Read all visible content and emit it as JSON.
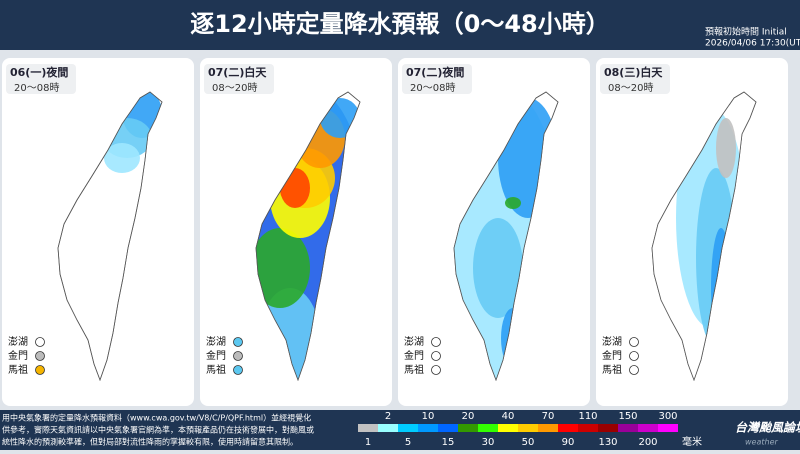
{
  "header": {
    "title": "逐12小時定量降水預報（0～48小時）",
    "init_label": "預報初始時間 Initial",
    "init_time": "2026/04/06   17:30(UT"
  },
  "panels": [
    {
      "day": "06(一)夜間",
      "hours": "20～08時",
      "islands": [
        "澎湖",
        "金門",
        "馬祖"
      ]
    },
    {
      "day": "07(二)白天",
      "hours": "08～20時",
      "islands": [
        "澎湖",
        "金門",
        "馬祖"
      ]
    },
    {
      "day": "07(二)夜間",
      "hours": "20～08時",
      "islands": [
        "澎湖",
        "金門",
        "馬祖"
      ]
    },
    {
      "day": "08(三)白天",
      "hours": "08～20時",
      "islands": [
        "澎湖",
        "金門",
        "馬祖"
      ]
    }
  ],
  "footer": {
    "notes": [
      "用中央氣象署的定量降水預報資料（www.cwa.gov.tw/V8/C/P/QPF.html）並經視覺化",
      "供參考，實際天氣資訊請以中央氣象署官網為準，本預報產品仍在技術發展中，對颱風或",
      "統性降水的預測較準確，但對局部對流性降雨的掌握較有限，使用時請留意其限制。"
    ],
    "legend_top": [
      2,
      10,
      20,
      40,
      70,
      110,
      150,
      300
    ],
    "legend_bottom": [
      1,
      5,
      15,
      30,
      50,
      90,
      130,
      200
    ],
    "unit": "毫米",
    "brand": "台灣颱風論壇",
    "brand_sub": "weather"
  }
}
